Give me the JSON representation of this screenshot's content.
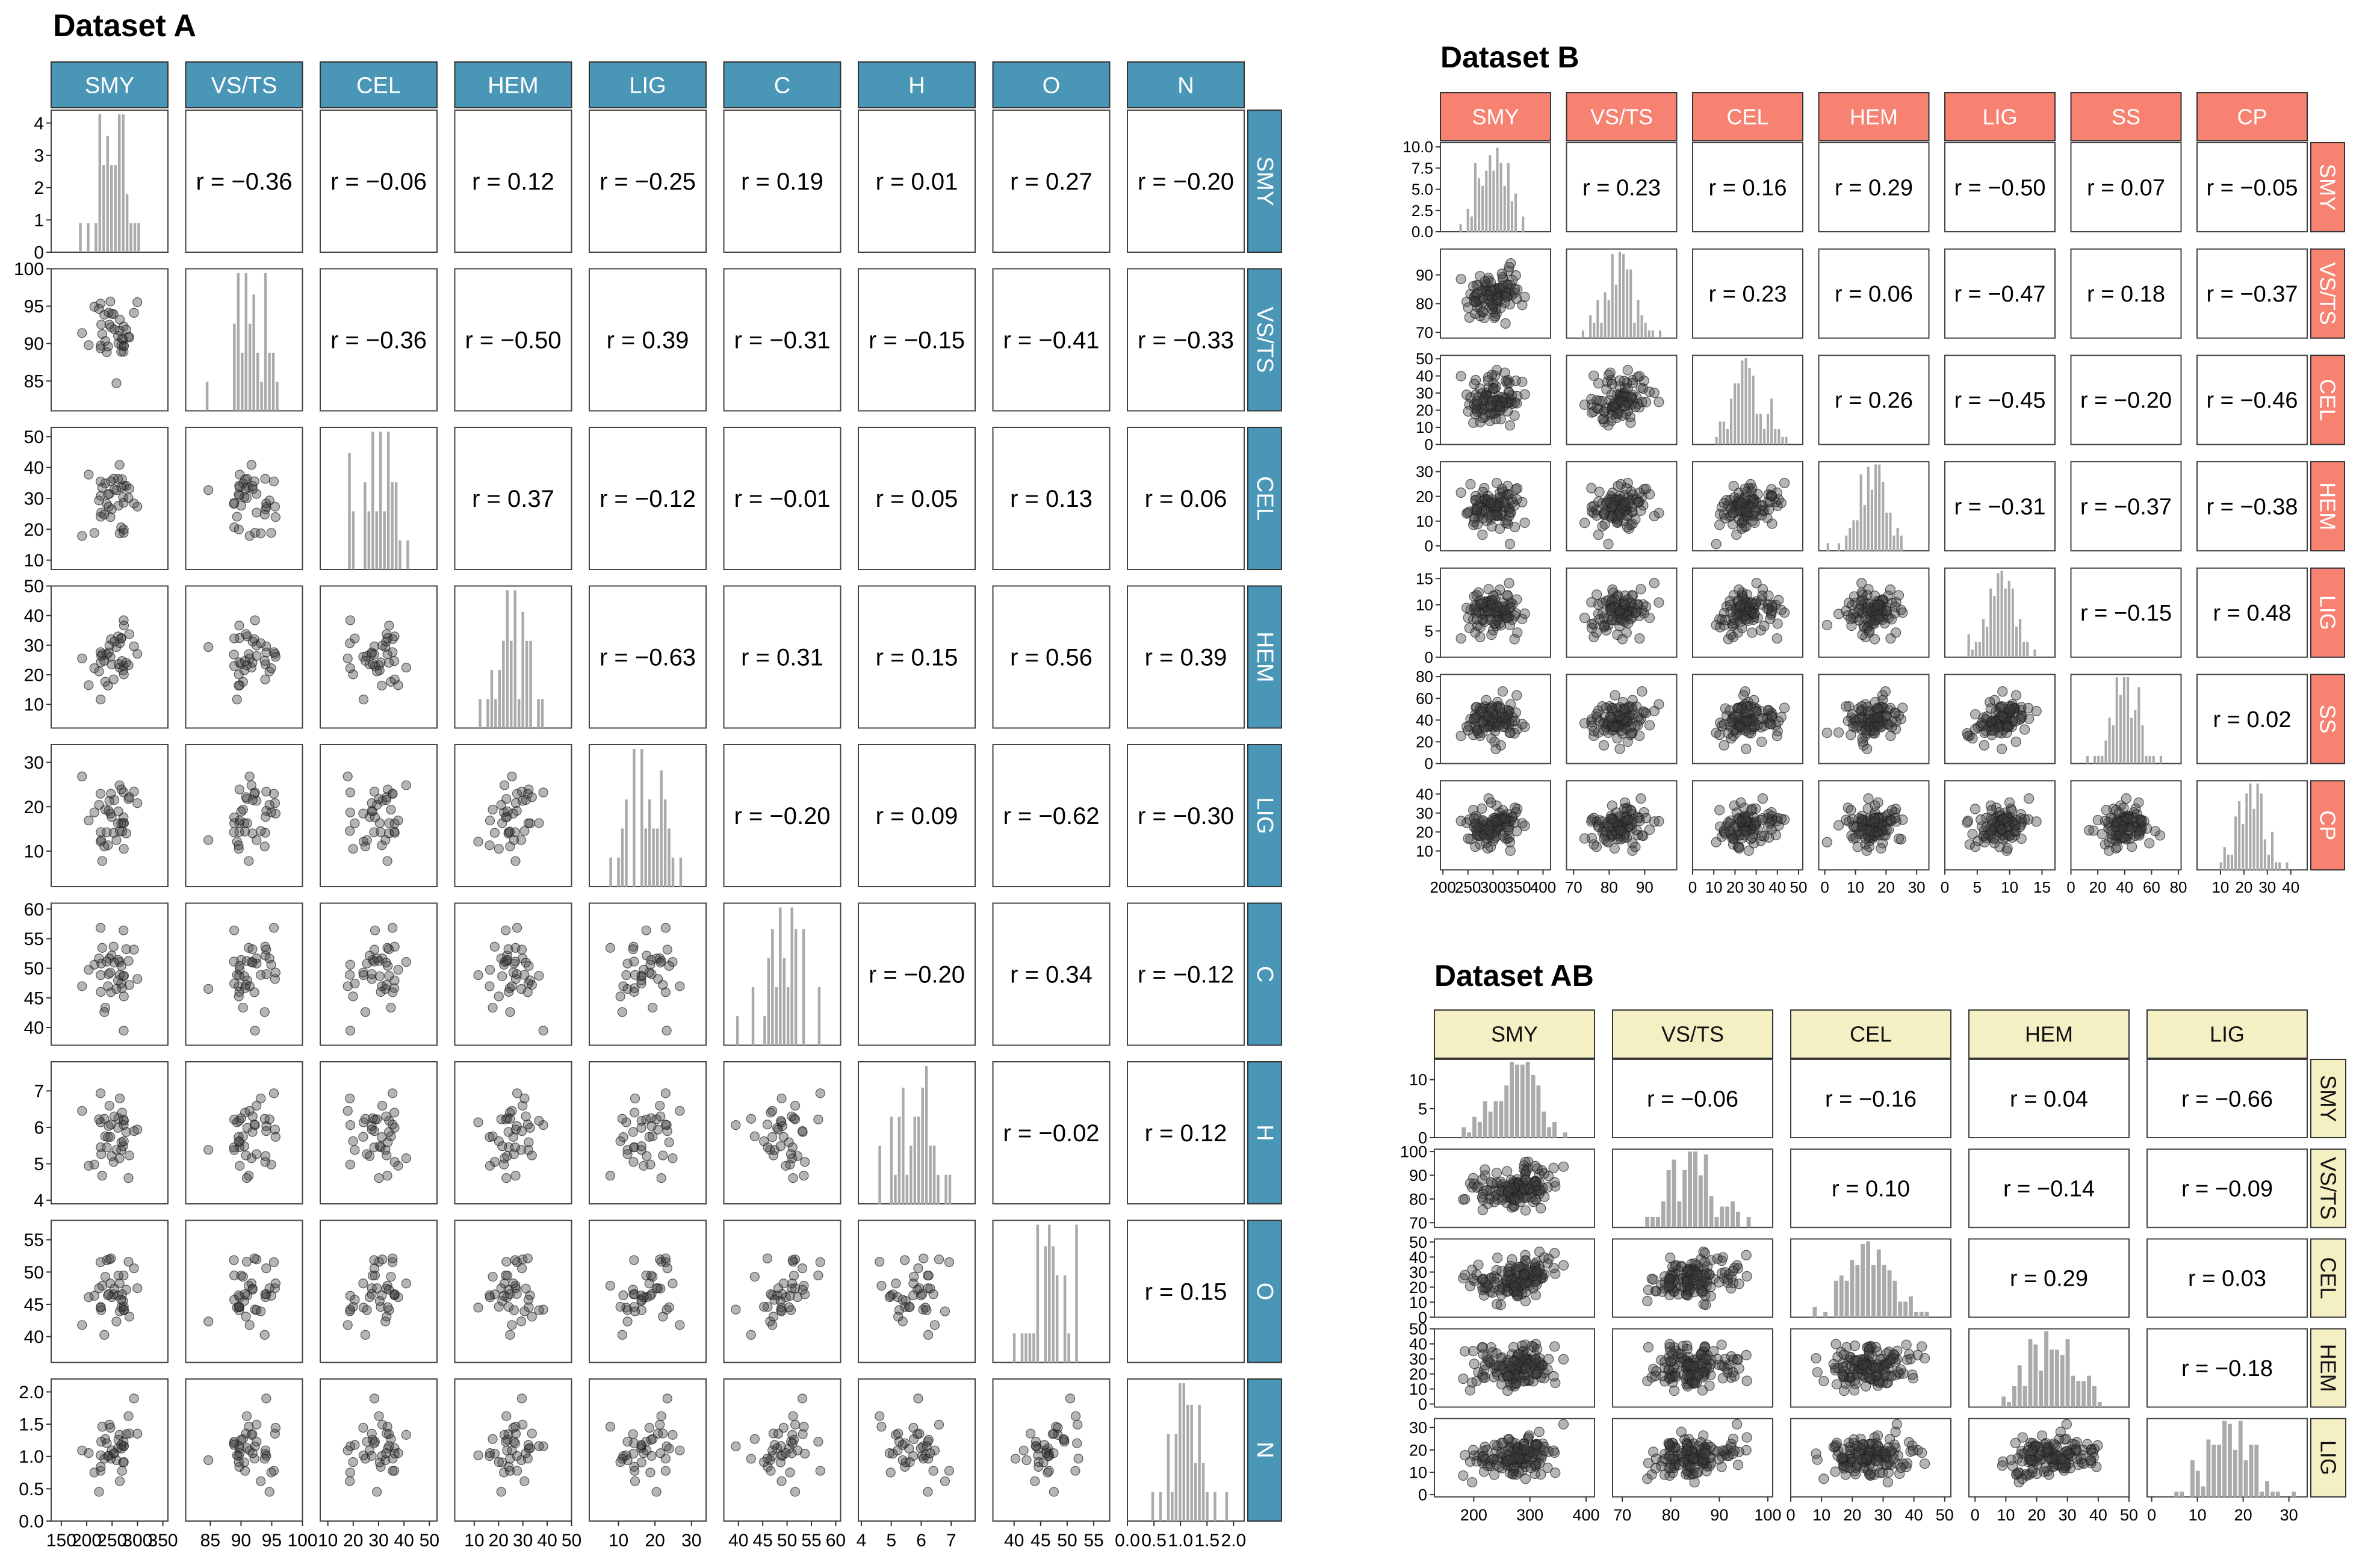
{
  "chart_data": [
    {
      "type": "scatter-matrix",
      "title": "Dataset A",
      "variables": [
        "SMY",
        "VS/TS",
        "CEL",
        "HEM",
        "LIG",
        "C",
        "H",
        "O",
        "N"
      ],
      "colors": {
        "strip": "#4a96b7",
        "points": "#555555",
        "bars": "#aaaaaa"
      },
      "ranges": [
        [
          130,
          360
        ],
        [
          81,
          100
        ],
        [
          7,
          53
        ],
        [
          2,
          50
        ],
        [
          2,
          34
        ],
        [
          37,
          61
        ],
        [
          3.9,
          7.8
        ],
        [
          36,
          58
        ],
        [
          0.0,
          2.2
        ]
      ],
      "ticks": [
        [
          150,
          200,
          250,
          300,
          350
        ],
        [
          85,
          90,
          95,
          100
        ],
        [
          10,
          20,
          30,
          40,
          50
        ],
        [
          10,
          20,
          30,
          40,
          50
        ],
        [
          10,
          20,
          30
        ],
        [
          40,
          45,
          50,
          55,
          60
        ],
        [
          4,
          5,
          6,
          7
        ],
        [
          40,
          45,
          50,
          55
        ],
        [
          0.0,
          0.5,
          1.0,
          1.5,
          2.0
        ]
      ],
      "diag_y_ticks": [
        0,
        1,
        2,
        3,
        4
      ],
      "diag_y_max": 4.4,
      "correlations": [
        [
          null,
          "-0.36",
          "-0.06",
          "0.12",
          "-0.25",
          "0.19",
          "0.01",
          "0.27",
          "-0.20"
        ],
        [
          null,
          null,
          "-0.36",
          "-0.50",
          "0.39",
          "-0.31",
          "-0.15",
          "-0.41",
          "-0.33"
        ],
        [
          null,
          null,
          null,
          "0.37",
          "-0.12",
          "-0.01",
          "0.05",
          "0.13",
          "0.06"
        ],
        [
          null,
          null,
          null,
          null,
          "-0.63",
          "0.31",
          "0.15",
          "0.56",
          "0.39"
        ],
        [
          null,
          null,
          null,
          null,
          null,
          "-0.20",
          "0.09",
          "-0.62",
          "-0.30"
        ],
        [
          null,
          null,
          null,
          null,
          null,
          null,
          "-0.20",
          "0.34",
          "-0.12"
        ],
        [
          null,
          null,
          null,
          null,
          null,
          null,
          null,
          "-0.02",
          "0.12"
        ],
        [
          null,
          null,
          null,
          null,
          null,
          null,
          null,
          null,
          "0.15"
        ],
        [
          null,
          null,
          null,
          null,
          null,
          null,
          null,
          null,
          null
        ]
      ],
      "n_observations": 38
    },
    {
      "type": "scatter-matrix",
      "title": "Dataset B",
      "variables": [
        "SMY",
        "VS/TS",
        "CEL",
        "HEM",
        "LIG",
        "SS",
        "CP"
      ],
      "colors": {
        "strip": "#f88272",
        "points": "#555555",
        "bars": "#aaaaaa"
      },
      "ranges": [
        [
          195,
          415
        ],
        [
          68,
          99
        ],
        [
          0,
          52
        ],
        [
          -2,
          34
        ],
        [
          0,
          17
        ],
        [
          0,
          82
        ],
        [
          0,
          47
        ]
      ],
      "ticks": [
        [
          200,
          250,
          300,
          350,
          400
        ],
        [
          70,
          80,
          90
        ],
        [
          0,
          10,
          20,
          30,
          40,
          50
        ],
        [
          0,
          10,
          20,
          30
        ],
        [
          0,
          5,
          10,
          15
        ],
        [
          0,
          20,
          40,
          60,
          80
        ],
        [
          10,
          20,
          30,
          40
        ]
      ],
      "diag_y_ticks": [
        0.0,
        2.5,
        5.0,
        7.5,
        10.0
      ],
      "diag_y_max": 10.5,
      "tick_labels": [
        [
          "200",
          "250",
          "300",
          "350",
          "400"
        ],
        [
          "70",
          "80",
          "90"
        ],
        [
          "0",
          "10",
          "20",
          "30",
          "40",
          "50"
        ],
        [
          "0",
          "10",
          "20",
          "30"
        ],
        [
          "0",
          "5",
          "10",
          "15"
        ],
        [
          "0",
          "20",
          "40",
          "60",
          "80"
        ],
        [
          "10",
          "20",
          "30",
          "40"
        ]
      ],
      "row_ticks": [
        [
          "0.0",
          "2.5",
          "5.0",
          "7.5",
          "10.0"
        ],
        [
          "70",
          "80",
          "90"
        ],
        [
          "0",
          "10",
          "20",
          "30",
          "40",
          "50"
        ],
        [
          "0",
          "10",
          "20",
          "30"
        ],
        [
          "0",
          "5",
          "10",
          "15"
        ],
        [
          "20",
          "40",
          "60",
          "80"
        ],
        [
          "10",
          "20",
          "30",
          "40"
        ]
      ],
      "correlations": [
        [
          null,
          "0.23",
          "0.16",
          "0.29",
          "-0.50",
          "0.07",
          "-0.05"
        ],
        [
          null,
          null,
          "0.23",
          "0.06",
          "-0.47",
          "0.18",
          "-0.37"
        ],
        [
          null,
          null,
          null,
          "0.26",
          "-0.45",
          "-0.20",
          "-0.46"
        ],
        [
          null,
          null,
          null,
          null,
          "-0.31",
          "-0.37",
          "-0.38"
        ],
        [
          null,
          null,
          null,
          null,
          null,
          "-0.15",
          "0.48"
        ],
        [
          null,
          null,
          null,
          null,
          null,
          null,
          "0.02"
        ],
        [
          null,
          null,
          null,
          null,
          null,
          null,
          null
        ]
      ],
      "n_observations": 100
    },
    {
      "type": "scatter-matrix",
      "title": "Dataset AB",
      "variables": [
        "SMY",
        "VS/TS",
        "CEL",
        "HEM",
        "LIG"
      ],
      "colors": {
        "strip": "#f5f0c4",
        "points": "#555555",
        "bars": "#aaaaaa"
      },
      "ranges": [
        [
          130,
          415
        ],
        [
          68,
          101
        ],
        [
          0,
          52
        ],
        [
          -2,
          50
        ],
        [
          -1,
          34
        ]
      ],
      "ticks": [
        [
          200,
          300,
          400
        ],
        [
          70,
          80,
          90,
          100
        ],
        [
          0,
          10,
          20,
          30,
          40,
          50
        ],
        [
          0,
          10,
          20,
          30,
          40,
          50
        ],
        [
          0,
          10,
          20,
          30
        ]
      ],
      "row_ticks": [
        [
          "0",
          "5",
          "10"
        ],
        [
          "70",
          "80",
          "90",
          "100"
        ],
        [
          "0",
          "10",
          "20",
          "30",
          "40",
          "50"
        ],
        [
          "0",
          "10",
          "20",
          "30",
          "40",
          "50"
        ],
        [
          "0",
          "10",
          "20",
          "30"
        ]
      ],
      "diag_y_ticks": [
        0,
        5,
        10
      ],
      "diag_y_max": 13.5,
      "correlations": [
        [
          null,
          "-0.06",
          "-0.16",
          "0.04",
          "-0.66"
        ],
        [
          null,
          null,
          "0.10",
          "-0.14",
          "-0.09"
        ],
        [
          null,
          null,
          null,
          "0.29",
          "0.03"
        ],
        [
          null,
          null,
          null,
          null,
          "-0.18"
        ],
        [
          null,
          null,
          null,
          null,
          null
        ]
      ],
      "n_observations": 138
    }
  ]
}
